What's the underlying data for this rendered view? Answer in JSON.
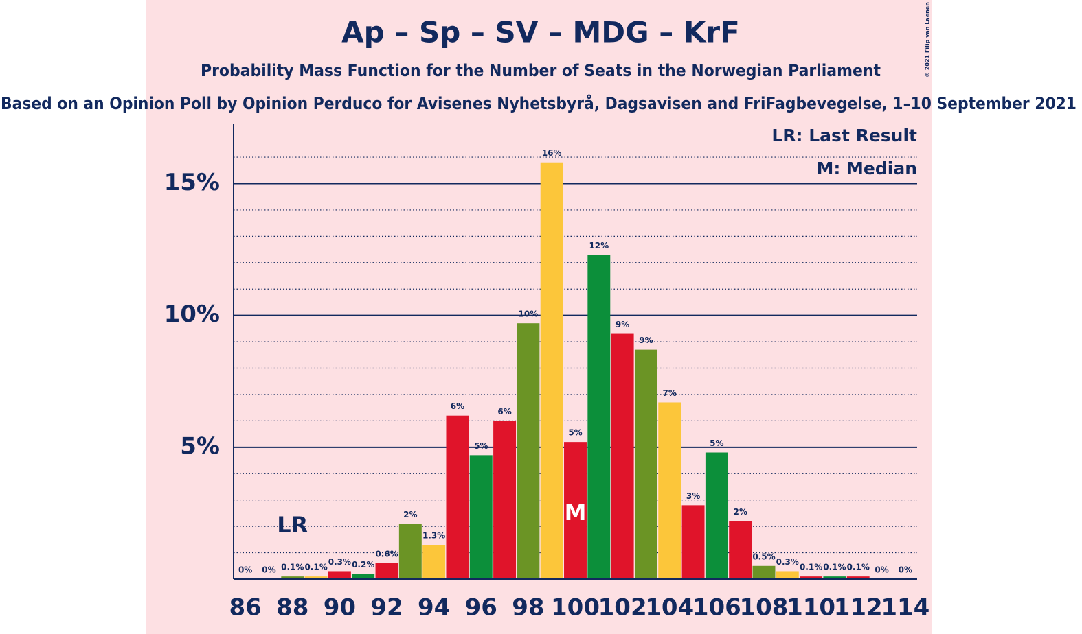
{
  "chart_data": {
    "type": "bar",
    "title": "Ap – Sp – SV – MDG – KrF",
    "subtitle": "Probability Mass Function for the Number of Seats in the Norwegian Parliament",
    "caption": "Based on an Opinion Poll by Opinion Perduco for Avisenes Nyhetsbyrå, Dagsavisen and FriFagbevegelse, 1–10 September 2021",
    "copyright": "© 2021 Filip van Laenen",
    "legend": [
      "LR: Last Result",
      "M: Median"
    ],
    "last_result": {
      "x": 88,
      "label": "LR"
    },
    "median": {
      "x": 100,
      "label": "M"
    },
    "x": [
      86,
      87,
      88,
      89,
      90,
      91,
      92,
      93,
      94,
      95,
      96,
      97,
      98,
      99,
      100,
      101,
      102,
      103,
      104,
      105,
      106,
      107,
      108,
      109,
      110,
      111,
      112,
      113,
      114
    ],
    "values": [
      0,
      0,
      0.1,
      0.1,
      0.3,
      0.2,
      0.6,
      2.1,
      1.3,
      6.2,
      4.7,
      6.0,
      9.7,
      15.8,
      5.2,
      12.3,
      9.3,
      8.7,
      6.7,
      2.8,
      4.8,
      2.2,
      0.5,
      0.3,
      0.1,
      0.1,
      0.1,
      0,
      0
    ],
    "value_labels": [
      "0%",
      "0%",
      "0.1%",
      "0.1%",
      "0.3%",
      "0.2%",
      "0.6%",
      "2%",
      "1.3%",
      "6%",
      "5%",
      "6%",
      "10%",
      "16%",
      "5%",
      "12%",
      "9%",
      "9%",
      "7%",
      "3%",
      "5%",
      "2%",
      "0.5%",
      "0.3%",
      "0.1%",
      "0.1%",
      "0.1%",
      "0%",
      "0%"
    ],
    "colors": [
      "#0c8f3a",
      "#e0142a",
      "#6b9425",
      "#fcc63a",
      "#e0142a",
      "#0c8f3a",
      "#e0142a",
      "#6b9425",
      "#fcc63a",
      "#e0142a",
      "#0c8f3a",
      "#e0142a",
      "#6b9425",
      "#fcc63a",
      "#e0142a",
      "#0c8f3a",
      "#e0142a",
      "#6b9425",
      "#fcc63a",
      "#e0142a",
      "#0c8f3a",
      "#e0142a",
      "#6b9425",
      "#fcc63a",
      "#e0142a",
      "#0c8f3a",
      "#e0142a",
      "#6b9425",
      "#fcc63a"
    ],
    "xlim": [
      85.5,
      114.5
    ],
    "xticks": [
      86,
      88,
      90,
      92,
      94,
      96,
      98,
      100,
      102,
      104,
      106,
      108,
      110,
      112,
      114
    ],
    "ylim": [
      0,
      17.25
    ],
    "yticks": [
      {
        "value": 5,
        "label": "5%"
      },
      {
        "value": 10,
        "label": "10%"
      },
      {
        "value": 15,
        "label": "15%"
      }
    ],
    "minor_yticks": [
      1,
      2,
      3,
      4,
      6,
      7,
      8,
      9,
      11,
      12,
      13,
      14,
      16
    ],
    "grid": true
  }
}
